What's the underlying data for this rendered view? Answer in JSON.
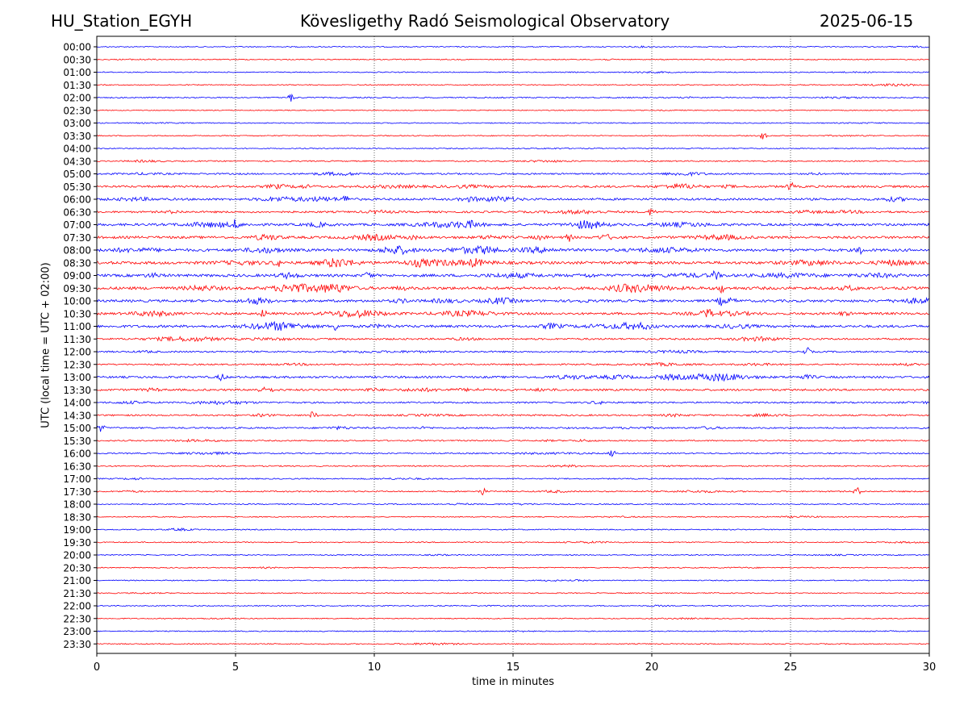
{
  "header": {
    "station": "HU_Station_EGYH",
    "observatory": "Kövesligethy Radó Seismological Observatory",
    "date": "2025-06-15"
  },
  "colors": {
    "even_rows": "#0000ff",
    "odd_rows": "#ff0000",
    "grid": "#000000"
  },
  "chart_data": {
    "type": "line",
    "title": "Kövesligethy Radó Seismological Observatory",
    "xlabel": "time in minutes",
    "ylabel": "UTC (local time = UTC + 02:00)",
    "xlim": [
      0,
      30
    ],
    "xticks": [
      0,
      5,
      10,
      15,
      20,
      25,
      30
    ],
    "vertical_grid_at": [
      5,
      10,
      15,
      20,
      25
    ],
    "rows": [
      "00:00",
      "00:30",
      "01:00",
      "01:30",
      "02:00",
      "02:30",
      "03:00",
      "03:30",
      "04:00",
      "04:30",
      "05:00",
      "05:30",
      "06:00",
      "06:30",
      "07:00",
      "07:30",
      "08:00",
      "08:30",
      "09:00",
      "09:30",
      "10:00",
      "10:30",
      "11:00",
      "11:30",
      "12:00",
      "12:30",
      "13:00",
      "13:30",
      "14:00",
      "14:30",
      "15:00",
      "15:30",
      "16:00",
      "16:30",
      "17:00",
      "17:30",
      "18:00",
      "18:30",
      "19:00",
      "19:30",
      "20:00",
      "20:30",
      "21:00",
      "21:30",
      "22:00",
      "22:30",
      "23:00",
      "23:30"
    ],
    "row_activity": [
      0.4,
      0.4,
      0.4,
      0.4,
      0.6,
      0.3,
      0.4,
      0.4,
      0.4,
      0.6,
      1.0,
      1.6,
      1.6,
      1.3,
      1.8,
      1.9,
      2.1,
      2.2,
      2.1,
      2.3,
      1.9,
      1.7,
      1.9,
      1.2,
      1.0,
      0.9,
      1.5,
      1.4,
      1.0,
      1.0,
      1.0,
      0.7,
      0.7,
      0.6,
      0.6,
      0.7,
      0.5,
      0.4,
      0.5,
      0.5,
      0.4,
      0.4,
      0.4,
      0.4,
      0.4,
      0.4,
      0.4,
      0.4
    ],
    "notable_events": [
      {
        "row": "02:00",
        "minute": 7.0
      },
      {
        "row": "03:30",
        "minute": 24.0
      },
      {
        "row": "05:30",
        "minute": 25.0
      },
      {
        "row": "06:00",
        "minute": 9.0
      },
      {
        "row": "06:30",
        "minute": 20.0
      },
      {
        "row": "07:00",
        "minute": 5.0
      },
      {
        "row": "07:30",
        "minute": 17.0
      },
      {
        "row": "08:00",
        "minute": 27.5
      },
      {
        "row": "08:30",
        "minute": 6.5
      },
      {
        "row": "09:00",
        "minute": 9.8
      },
      {
        "row": "09:00",
        "minute": 22.3
      },
      {
        "row": "09:30",
        "minute": 22.5
      },
      {
        "row": "10:00",
        "minute": 22.5
      },
      {
        "row": "10:30",
        "minute": 6.0
      },
      {
        "row": "10:30",
        "minute": 22.0
      },
      {
        "row": "11:00",
        "minute": 8.6
      },
      {
        "row": "12:00",
        "minute": 25.6
      },
      {
        "row": "13:00",
        "minute": 4.5
      },
      {
        "row": "14:30",
        "minute": 7.8
      },
      {
        "row": "15:00",
        "minute": 0.15
      },
      {
        "row": "16:00",
        "minute": 18.6
      },
      {
        "row": "17:30",
        "minute": 13.9
      },
      {
        "row": "17:30",
        "minute": 27.4
      }
    ]
  }
}
